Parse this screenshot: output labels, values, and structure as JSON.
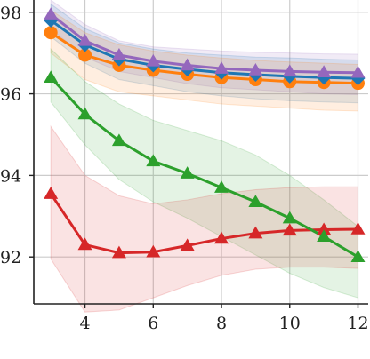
{
  "chart_data": {
    "type": "line",
    "title": "",
    "xlabel": "",
    "ylabel": "",
    "xlim": [
      2.5,
      12.3
    ],
    "ylim": [
      90.85,
      98.3
    ],
    "xticks": [
      4,
      6,
      8,
      10,
      12
    ],
    "yticks": [
      92,
      94,
      96,
      98
    ],
    "grid": true,
    "legend": "none",
    "x": [
      3,
      4,
      5,
      6,
      7,
      8,
      9,
      10,
      11,
      12
    ],
    "series": [
      {
        "color": "#9467bd",
        "marker": "triangle",
        "values": [
          97.95,
          97.3,
          96.95,
          96.8,
          96.7,
          96.62,
          96.58,
          96.55,
          96.53,
          96.52
        ],
        "band_low": [
          97.6,
          96.9,
          96.55,
          96.4,
          96.25,
          96.15,
          96.1,
          96.05,
          96.0,
          95.98
        ],
        "band_high": [
          98.3,
          97.7,
          97.3,
          97.15,
          97.1,
          97.05,
          97.02,
          97.0,
          96.98,
          96.97
        ]
      },
      {
        "color": "#1f77b4",
        "marker": "diamond",
        "values": [
          97.8,
          97.2,
          96.85,
          96.7,
          96.6,
          96.52,
          96.47,
          96.43,
          96.4,
          96.38
        ],
        "band_low": [
          97.4,
          96.75,
          96.35,
          96.2,
          96.05,
          95.95,
          95.88,
          95.83,
          95.8,
          95.78
        ],
        "band_high": [
          98.2,
          97.6,
          97.25,
          97.1,
          97.0,
          96.95,
          96.9,
          96.88,
          96.85,
          96.83
        ]
      },
      {
        "color": "#ff7f0e",
        "marker": "circle",
        "values": [
          97.5,
          96.95,
          96.7,
          96.58,
          96.48,
          96.4,
          96.35,
          96.3,
          96.28,
          96.26
        ],
        "band_low": [
          97.0,
          96.35,
          96.05,
          95.95,
          95.85,
          95.75,
          95.7,
          95.65,
          95.6,
          95.58
        ],
        "band_high": [
          98.05,
          97.5,
          97.2,
          97.05,
          96.95,
          96.88,
          96.82,
          96.78,
          96.75,
          96.72
        ]
      },
      {
        "color": "#2ca02c",
        "marker": "triangle",
        "values": [
          96.4,
          95.5,
          94.85,
          94.35,
          94.05,
          93.7,
          93.35,
          92.95,
          92.5,
          92.0
        ],
        "band_low": [
          95.8,
          94.75,
          93.9,
          93.35,
          92.95,
          92.5,
          92.05,
          91.6,
          91.25,
          91.0
        ],
        "band_high": [
          97.1,
          96.3,
          95.75,
          95.35,
          95.1,
          94.85,
          94.5,
          94.0,
          93.4,
          92.75
        ]
      },
      {
        "color": "#d62728",
        "marker": "triangle",
        "values": [
          93.55,
          92.3,
          92.1,
          92.12,
          92.28,
          92.45,
          92.58,
          92.65,
          92.67,
          92.68
        ],
        "band_low": [
          91.95,
          90.65,
          90.7,
          91.0,
          91.3,
          91.55,
          91.7,
          91.75,
          91.75,
          91.72
        ],
        "band_high": [
          95.2,
          94.0,
          93.5,
          93.3,
          93.4,
          93.55,
          93.65,
          93.7,
          93.72,
          93.72
        ]
      }
    ]
  }
}
